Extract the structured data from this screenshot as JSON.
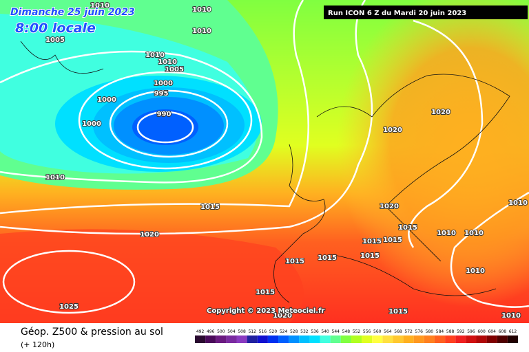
{
  "header": {
    "date": "Dimanche 25 juin 2023",
    "time": "8:00 locale",
    "run": "Run ICON 6 Z du Mardi 20 juin 2023"
  },
  "isobar_labels": [
    "1010",
    "1010",
    "1005",
    "1010",
    "1010",
    "1010",
    "1005",
    "1000",
    "995",
    "1000",
    "990",
    "1000",
    "1020",
    "1020",
    "1010",
    "1015",
    "1020",
    "1010",
    "1015",
    "1020",
    "1015",
    "1015",
    "1010",
    "1010",
    "1015",
    "1015",
    "1015",
    "1010",
    "1015",
    "1025",
    "1020",
    "1015",
    "1010"
  ],
  "copyright": "Copyright © 2023 Meteociel.fr",
  "footer": {
    "title": "Géop. Z500 & pression au sol",
    "lead": "(+ 120h)"
  },
  "scale": {
    "ticks": [
      492,
      496,
      500,
      504,
      508,
      512,
      516,
      520,
      524,
      528,
      532,
      536,
      540,
      544,
      548,
      552,
      556,
      560,
      564,
      568,
      572,
      576,
      580,
      584,
      588,
      592,
      596,
      600,
      604,
      608,
      612
    ],
    "colors": [
      "#2a0a30",
      "#4a0a5a",
      "#6a1a80",
      "#7a2aa0",
      "#8a3ac0",
      "#2020a0",
      "#1010d0",
      "#0030f0",
      "#0060ff",
      "#0090ff",
      "#00c0ff",
      "#00e0ff",
      "#40ffe0",
      "#60ff90",
      "#80ff40",
      "#b0ff20",
      "#e0ff20",
      "#ffff40",
      "#ffe040",
      "#ffc830",
      "#ffb020",
      "#ff9820",
      "#ff8020",
      "#ff6020",
      "#ff4020",
      "#f02020",
      "#d01010",
      "#b00808",
      "#800000",
      "#500000",
      "#200000"
    ]
  }
}
